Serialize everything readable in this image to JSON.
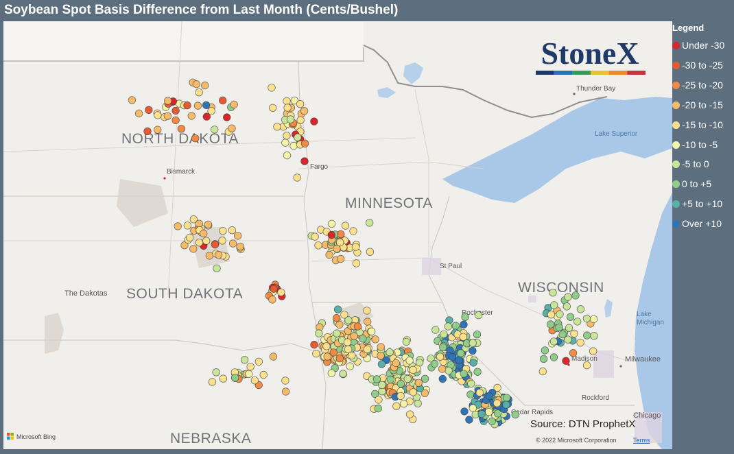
{
  "title": "Soybean Spot Basis Difference from Last Month (Cents/Bushel)",
  "map": {
    "attribution": "Microsoft Bing",
    "copyright": "© 2022 Microsoft Corporation",
    "terms": "Terms",
    "source": "Source: DTN ProphetX",
    "places": [
      {
        "name": "NORTH DAKOTA",
        "kind": "state"
      },
      {
        "name": "SOUTH DAKOTA",
        "kind": "state"
      },
      {
        "name": "MINNESOTA",
        "kind": "state"
      },
      {
        "name": "WISCONSIN",
        "kind": "state"
      },
      {
        "name": "NEBRASKA",
        "kind": "state"
      },
      {
        "name": "The Dakotas",
        "kind": "region"
      },
      {
        "name": "Bismarck",
        "kind": "city"
      },
      {
        "name": "Fargo",
        "kind": "city"
      },
      {
        "name": "St Paul",
        "kind": "city"
      },
      {
        "name": "Rochester",
        "kind": "city"
      },
      {
        "name": "Madison",
        "kind": "city"
      },
      {
        "name": "Milwaukee",
        "kind": "city"
      },
      {
        "name": "Rockford",
        "kind": "city"
      },
      {
        "name": "Chicago",
        "kind": "city"
      },
      {
        "name": "Cedar Rapids",
        "kind": "city"
      },
      {
        "name": "Thunder Bay",
        "kind": "city"
      },
      {
        "name": "Lake Superior",
        "kind": "water"
      },
      {
        "name": "Lake Michigan",
        "kind": "water"
      }
    ]
  },
  "logo": {
    "text": "StoneX",
    "stripe_colors": [
      "#1f3a68",
      "#2e6fb0",
      "#3a9a5b",
      "#e6c22c",
      "#e98a2c",
      "#c4343b"
    ]
  },
  "legend": {
    "title": "Legend",
    "items": [
      {
        "label": "Under -30",
        "color": "#d7262c"
      },
      {
        "label": "-30 to -25",
        "color": "#e55a32"
      },
      {
        "label": "-25 to -20",
        "color": "#f08a44"
      },
      {
        "label": "-20 to -15",
        "color": "#f6bb6a"
      },
      {
        "label": "-15 to -10",
        "color": "#fbe08d"
      },
      {
        "label": "-10 to -5",
        "color": "#f3f4a8"
      },
      {
        "label": "-5 to 0",
        "color": "#c9e59a"
      },
      {
        "label": "0 to +5",
        "color": "#90cd8a"
      },
      {
        "label": "+5 to +10",
        "color": "#5ab0a8"
      },
      {
        "label": "Over +10",
        "color": "#2f74b5"
      }
    ]
  }
}
